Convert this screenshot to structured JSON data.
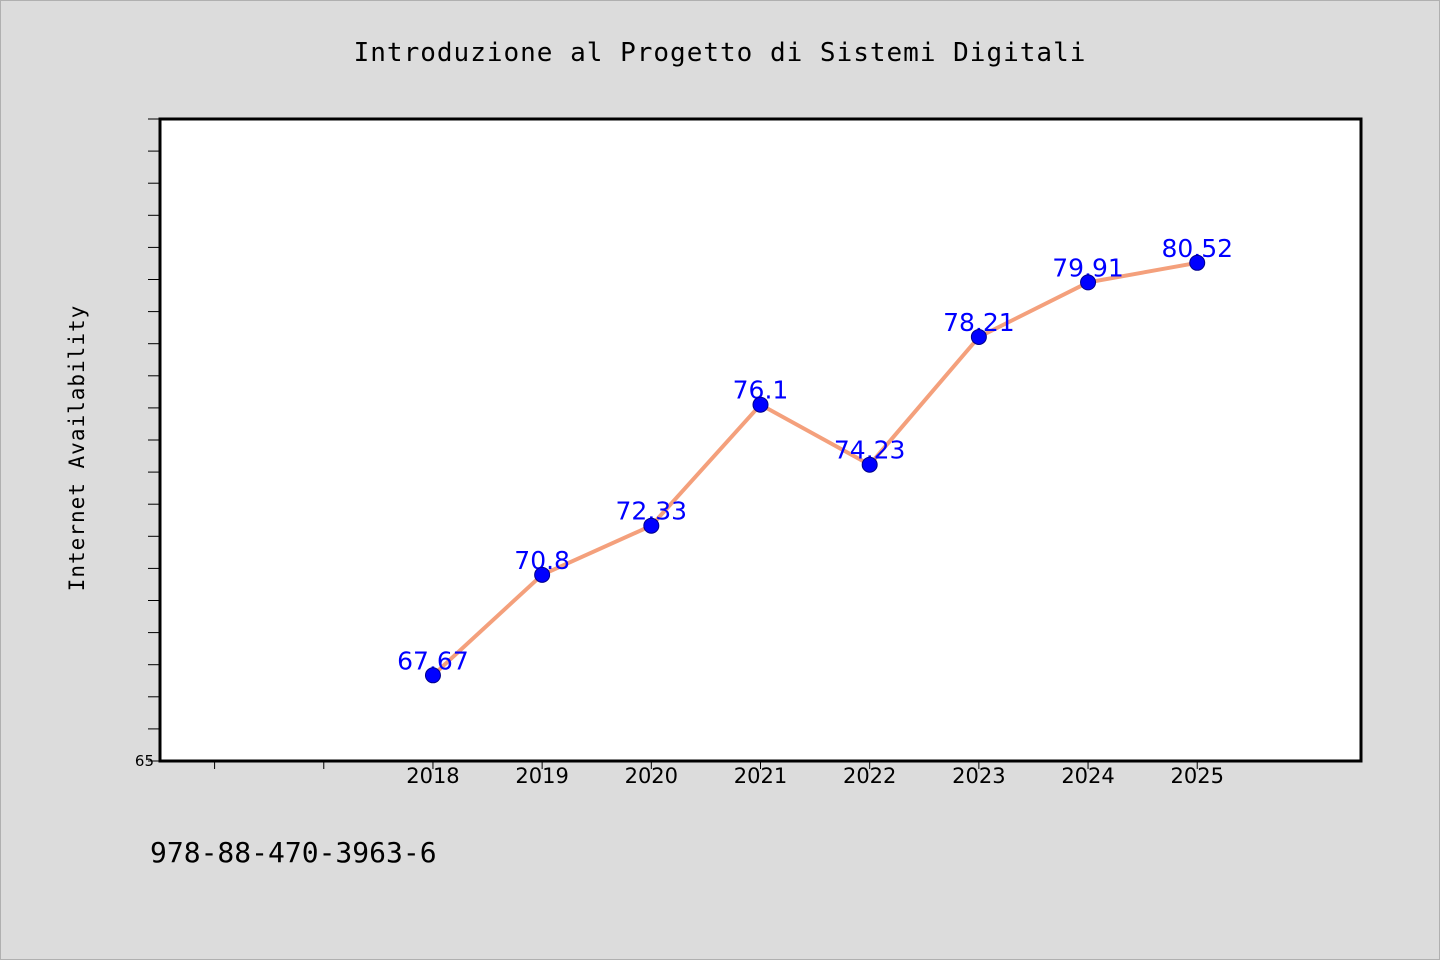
{
  "chart_data": {
    "type": "line",
    "title": "Introduzione al Progetto di Sistemi Digitali",
    "xlabel": "",
    "ylabel": "Internet Availability",
    "categories": [
      "2018",
      "2019",
      "2020",
      "2021",
      "2022",
      "2023",
      "2024",
      "2025"
    ],
    "values": [
      67.67,
      70.8,
      72.33,
      76.1,
      74.23,
      78.21,
      79.91,
      80.52
    ],
    "data_labels": [
      "67.67",
      "70.8",
      "72.33",
      "76.1",
      "74.23",
      "78.21",
      "79.91",
      "80.52"
    ],
    "xlim": [
      2015.5,
      2026.5
    ],
    "ylim": [
      65,
      85
    ],
    "ytick_labels": [
      "65"
    ],
    "grid": false,
    "legend": "none",
    "line_color": "#f4a07c",
    "marker_color": "#0000ff",
    "label_color": "#0000ff"
  },
  "footer": {
    "isbn": "978-88-470-3963-6"
  }
}
